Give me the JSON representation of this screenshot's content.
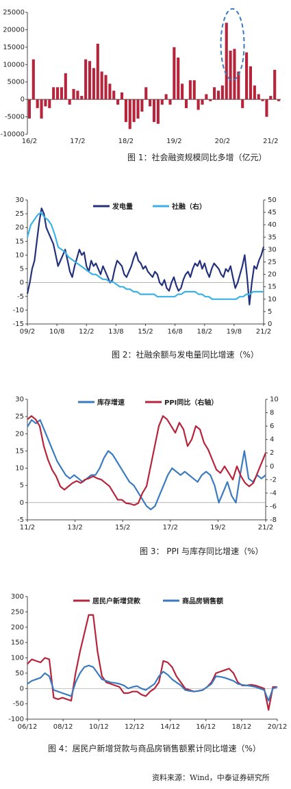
{
  "chart_data": [
    {
      "id": "fig1",
      "type": "bar",
      "title": "图 1：社会融资规模同比多增（亿元）",
      "color": "#b5243a",
      "annotation_color": "#3a7abf",
      "ylim": [
        -10000,
        25000
      ],
      "yticks": [
        -10000,
        -5000,
        0,
        5000,
        10000,
        15000,
        20000,
        25000
      ],
      "xtick_labels": [
        "16/2",
        "17/2",
        "18/2",
        "19/2",
        "20/2",
        "21/2"
      ],
      "xtick_index": [
        0,
        12,
        24,
        36,
        48,
        60
      ],
      "values": [
        -5500,
        11500,
        -2500,
        -5500,
        -2000,
        -2500,
        3500,
        3500,
        3500,
        7500,
        -1500,
        3000,
        2500,
        1000,
        11500,
        11000,
        9000,
        16000,
        8000,
        7000,
        4500,
        2500,
        -1500,
        2000,
        -6500,
        -8500,
        -6500,
        -5500,
        -3500,
        3500,
        -2000,
        -6500,
        -7000,
        -1500,
        1500,
        -1500,
        15000,
        12000,
        4500,
        -2500,
        5500,
        5500,
        -3000,
        -1500,
        1500,
        -500,
        3500,
        2500,
        4000,
        22000,
        14000,
        14500,
        8000,
        -2500,
        13500,
        9500,
        4000,
        1500,
        -500,
        -5000,
        1000,
        8500,
        -500
      ]
    },
    {
      "id": "fig2",
      "type": "line",
      "title": "图 2：社融余额与发电量同比增速（%）",
      "ylim": [
        -15,
        30
      ],
      "yticks": [
        -15,
        -10,
        -5,
        0,
        5,
        10,
        15,
        20,
        25,
        30
      ],
      "y2lim": [
        0,
        50
      ],
      "y2ticks": [
        0,
        5,
        10,
        15,
        20,
        25,
        30,
        35,
        40,
        45,
        50
      ],
      "xtick_labels": [
        "09/2",
        "10/8",
        "12/2",
        "13/8",
        "15/2",
        "16/8",
        "18/2",
        "19/8",
        "21/2"
      ],
      "xtick_index": [
        0,
        18,
        36,
        54,
        72,
        90,
        108,
        126,
        144
      ],
      "series": [
        {
          "name": "发电量",
          "axis": "left",
          "color": "#23307a",
          "values": [
            -4,
            0,
            5,
            8,
            15,
            22,
            27,
            25,
            20,
            18,
            16,
            14,
            10,
            6,
            8,
            10,
            12,
            8,
            4,
            2,
            6,
            9,
            12,
            10,
            11,
            6,
            4,
            8,
            6,
            7,
            5,
            3,
            6,
            4,
            2,
            0,
            1,
            5,
            8,
            7,
            6,
            3,
            2,
            4,
            6,
            9,
            11,
            8,
            7,
            5,
            6,
            4,
            3,
            2,
            4,
            3,
            0,
            -1,
            1,
            -2,
            -3,
            0,
            2,
            -1,
            -3,
            -2,
            1,
            3,
            4,
            2,
            5,
            7,
            6,
            8,
            5,
            7,
            4,
            2,
            5,
            7,
            6,
            5,
            3,
            2,
            5,
            4,
            6,
            2,
            -2,
            0,
            3,
            6,
            10,
            2,
            -8,
            0,
            6,
            5,
            8,
            10,
            13
          ]
        },
        {
          "name": "社融（右）",
          "axis": "right",
          "color": "#3cb1e6",
          "values": [
            35,
            40,
            42,
            44,
            45,
            43,
            42,
            40,
            36,
            31,
            30,
            29,
            27,
            26,
            25,
            24,
            23,
            22,
            21,
            20,
            20,
            19,
            18,
            18,
            17,
            17,
            16,
            15,
            15,
            14,
            14,
            13,
            13,
            12,
            12,
            12,
            12,
            12,
            11,
            11,
            11,
            11,
            11,
            11,
            12,
            12,
            13,
            13,
            13,
            13,
            12,
            12,
            11,
            11,
            10,
            10,
            10,
            10,
            10,
            10,
            10,
            10,
            11,
            11,
            12,
            12,
            13,
            13,
            13,
            13
          ]
        }
      ],
      "legend": "top-center"
    },
    {
      "id": "fig3",
      "type": "line",
      "title": "图 3： PPI 与库存同比增速（%）",
      "ylim": [
        -5,
        30
      ],
      "yticks": [
        -5,
        0,
        5,
        10,
        15,
        20,
        25,
        30
      ],
      "y2lim": [
        -8,
        10
      ],
      "y2ticks": [
        -8,
        -6,
        -4,
        -2,
        0,
        2,
        4,
        6,
        8,
        10
      ],
      "xtick_labels": [
        "11/2",
        "13/2",
        "15/2",
        "17/2",
        "19/2",
        "21/2"
      ],
      "xtick_index": [
        0,
        24,
        48,
        72,
        96,
        120
      ],
      "series": [
        {
          "name": "库存增速",
          "axis": "left",
          "color": "#3a7abf",
          "values": [
            22,
            24,
            23,
            24,
            21,
            18,
            15,
            12,
            10,
            8,
            7,
            8,
            7,
            6,
            7,
            8,
            8,
            10,
            13,
            15,
            14,
            12,
            10,
            8,
            6,
            5,
            3,
            1,
            -1,
            -2,
            -1,
            2,
            5,
            8,
            10,
            9,
            8,
            9,
            8,
            7,
            6,
            8,
            9,
            8,
            5,
            0,
            3,
            6,
            2,
            0,
            8,
            15,
            7,
            6,
            8,
            7,
            8
          ]
        },
        {
          "name": "PPI同比（右轴）",
          "axis": "right",
          "color": "#b5243a",
          "values": [
            7,
            7.5,
            7,
            6,
            3,
            1,
            -0.5,
            -1.5,
            -3,
            -3.5,
            -3,
            -2.5,
            -2.2,
            -2.5,
            -2.0,
            -1.8,
            -1.5,
            -1.8,
            -2,
            -2.5,
            -3,
            -4,
            -5,
            -5,
            -5.5,
            -5.6,
            -5.8,
            -5.5,
            -4,
            -3,
            0,
            3,
            6,
            7.5,
            7,
            6,
            5,
            6.5,
            5.5,
            3,
            4,
            6,
            5.5,
            3.5,
            2.5,
            1,
            -0.5,
            -1,
            0,
            -1,
            -2,
            0,
            -1.5,
            -2.5,
            -3,
            -2.5,
            -1,
            0.5,
            2
          ]
        }
      ],
      "legend": "top-center"
    },
    {
      "id": "fig4",
      "type": "line",
      "title": "图 4：居民户新增贷款与商品房销售额累计同比增速（%）",
      "ylim": [
        -100,
        300
      ],
      "yticks": [
        -100,
        -50,
        0,
        50,
        100,
        150,
        200,
        250,
        300
      ],
      "xtick_labels": [
        "06/12",
        "08/12",
        "10/12",
        "12/12",
        "14/12",
        "16/12",
        "18/12",
        "20/12"
      ],
      "xtick_index": [
        0,
        24,
        48,
        72,
        96,
        120,
        144,
        168
      ],
      "series": [
        {
          "name": "居民户新增贷款",
          "color": "#b5243a",
          "values": [
            80,
            95,
            90,
            85,
            100,
            95,
            -30,
            -35,
            -30,
            -35,
            -40,
            50,
            120,
            180,
            240,
            240,
            120,
            40,
            20,
            15,
            10,
            5,
            -15,
            -15,
            -10,
            -10,
            -20,
            -25,
            -10,
            0,
            20,
            90,
            85,
            70,
            40,
            20,
            0,
            -5,
            -10,
            -8,
            -5,
            5,
            20,
            50,
            55,
            60,
            65,
            50,
            20,
            10,
            10,
            12,
            10,
            5,
            0,
            -70,
            5,
            5
          ]
        },
        {
          "name": "商品房销售额",
          "color": "#3a7abf",
          "values": [
            15,
            25,
            30,
            35,
            50,
            40,
            -5,
            -10,
            -15,
            -20,
            -25,
            20,
            50,
            70,
            75,
            70,
            50,
            30,
            25,
            20,
            18,
            15,
            10,
            0,
            5,
            8,
            0,
            -5,
            5,
            15,
            40,
            55,
            45,
            30,
            20,
            10,
            -5,
            -8,
            -10,
            -8,
            -5,
            5,
            15,
            40,
            38,
            35,
            30,
            25,
            15,
            12,
            10,
            8,
            5,
            0,
            -5,
            -40,
            0,
            5
          ]
        }
      ],
      "legend": "top-center"
    }
  ],
  "source": "资料来源：Wind，中泰证券研究所"
}
